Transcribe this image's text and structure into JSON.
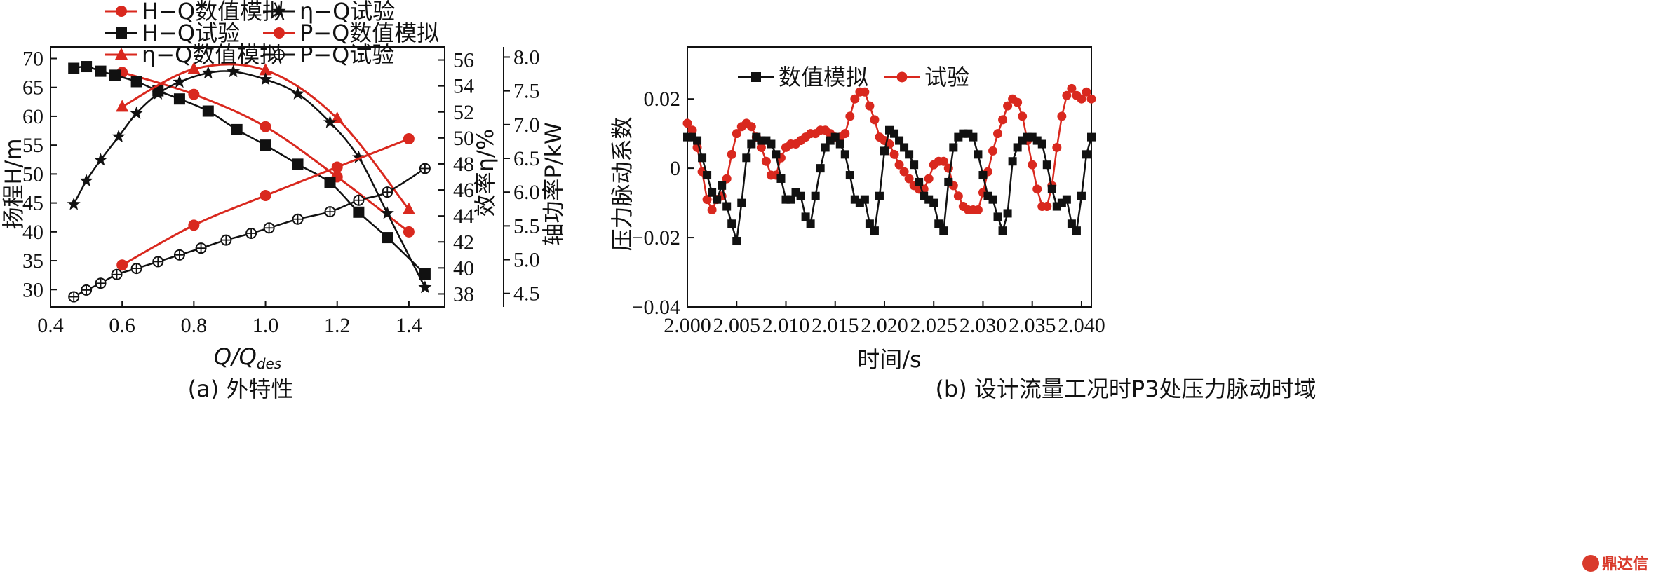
{
  "watermark": {
    "text": "鼎达信",
    "color": "#d93a2b"
  },
  "colors": {
    "red": "#d9281e",
    "black": "#111111"
  },
  "chart_data": [
    {
      "type": "line",
      "caption": "(a) 外特性",
      "xlabel": "Q/Q_des",
      "xlabel_main": "Q/Q",
      "xlabel_sub": "des",
      "xlim": [
        0.4,
        1.5
      ],
      "xticks": [
        "0.4",
        "0.6",
        "0.8",
        "1.0",
        "1.2",
        "1.4"
      ],
      "y_axes": [
        {
          "id": "H",
          "label": "扬程H/m",
          "lim": [
            27,
            72
          ],
          "ticks": [
            "30",
            "35",
            "40",
            "45",
            "50",
            "55",
            "60",
            "65",
            "70"
          ]
        },
        {
          "id": "eta",
          "label": "效率η/%",
          "lim": [
            37,
            57
          ],
          "ticks": [
            "38",
            "40",
            "42",
            "44",
            "46",
            "48",
            "50",
            "52",
            "54",
            "56"
          ]
        },
        {
          "id": "P",
          "label": "轴功率P/kW",
          "lim": [
            4.3,
            8.15
          ],
          "ticks": [
            "4.5",
            "5.0",
            "5.5",
            "6.0",
            "6.5",
            "7.0",
            "7.5",
            "8.0"
          ]
        }
      ],
      "legend": {
        "placement": "top",
        "entries": [
          "H−Q数值模拟",
          "η−Q试验",
          "H−Q试验",
          "P−Q数值模拟",
          "η−Q数值模拟",
          "P−Q试验"
        ]
      },
      "series": [
        {
          "name": "H−Q数值模拟",
          "axis": "H",
          "color": "#d9281e",
          "marker": "circle",
          "x": [
            0.6,
            0.8,
            1.0,
            1.2,
            1.4
          ],
          "y": [
            67.6,
            63.8,
            58.2,
            49.5,
            40.0
          ]
        },
        {
          "name": "H−Q试验",
          "axis": "H",
          "color": "#111111",
          "marker": "square",
          "x": [
            0.465,
            0.5,
            0.54,
            0.58,
            0.64,
            0.7,
            0.76,
            0.84,
            0.92,
            1.0,
            1.09,
            1.18,
            1.26,
            1.34,
            1.445
          ],
          "y": [
            68.3,
            68.6,
            67.8,
            67.1,
            66.0,
            64.4,
            63.0,
            60.9,
            57.7,
            55.0,
            51.7,
            48.5,
            43.4,
            39.0,
            32.7
          ]
        },
        {
          "name": "η−Q数值模拟",
          "axis": "eta",
          "color": "#d9281e",
          "marker": "triangle",
          "x": [
            0.6,
            0.8,
            1.0,
            1.2,
            1.4
          ],
          "y": [
            52.4,
            55.3,
            55.2,
            51.5,
            44.5
          ]
        },
        {
          "name": "η−Q试验",
          "axis": "eta",
          "color": "#111111",
          "marker": "star",
          "x": [
            0.465,
            0.5,
            0.54,
            0.59,
            0.64,
            0.7,
            0.76,
            0.84,
            0.91,
            1.0,
            1.09,
            1.18,
            1.26,
            1.34,
            1.445
          ],
          "y": [
            44.9,
            46.7,
            48.3,
            50.1,
            51.9,
            53.4,
            54.3,
            55.0,
            55.1,
            54.5,
            53.4,
            51.2,
            48.5,
            44.2,
            38.5
          ]
        },
        {
          "name": "P−Q数值模拟",
          "axis": "P",
          "color": "#d9281e",
          "marker": "circle",
          "x": [
            0.6,
            0.8,
            1.0,
            1.2,
            1.4
          ],
          "y": [
            4.92,
            5.51,
            5.95,
            6.37,
            6.79
          ]
        },
        {
          "name": "P−Q试验",
          "axis": "P",
          "color": "#111111",
          "marker": "circled-plus",
          "x": [
            0.465,
            0.5,
            0.54,
            0.585,
            0.64,
            0.7,
            0.76,
            0.82,
            0.89,
            0.96,
            1.01,
            1.09,
            1.18,
            1.26,
            1.34,
            1.445
          ],
          "y": [
            4.45,
            4.55,
            4.65,
            4.78,
            4.87,
            4.97,
            5.07,
            5.17,
            5.29,
            5.39,
            5.47,
            5.6,
            5.71,
            5.88,
            6.0,
            6.35
          ]
        }
      ]
    },
    {
      "type": "line",
      "caption": "(b) 设计流量工况时P3处压力脉动时域",
      "xlabel": "时间/s",
      "ylabel": "压力脉动系数",
      "xlim": [
        2.0,
        2.041
      ],
      "ylim": [
        -0.04,
        0.035
      ],
      "xticks": [
        "2.000",
        "2.005",
        "2.010",
        "2.015",
        "2.020",
        "2.025",
        "2.030",
        "2.035",
        "2.040"
      ],
      "yticks": [
        "−0.04",
        "−0.02",
        "0",
        "0.02"
      ],
      "legend": {
        "placement": "top-left",
        "entries": [
          "数值模拟",
          "试验"
        ]
      },
      "series": [
        {
          "name": "数值模拟",
          "color": "#111111",
          "marker": "square",
          "x": [
            2.0,
            2.0005,
            2.001,
            2.0015,
            2.002,
            2.0025,
            2.003,
            2.0035,
            2.004,
            2.0045,
            2.005,
            2.0055,
            2.006,
            2.0065,
            2.007,
            2.0075,
            2.008,
            2.0085,
            2.009,
            2.0095,
            2.01,
            2.0105,
            2.011,
            2.0115,
            2.012,
            2.0125,
            2.013,
            2.0135,
            2.014,
            2.0145,
            2.015,
            2.0155,
            2.016,
            2.0165,
            2.017,
            2.0175,
            2.018,
            2.0185,
            2.019,
            2.0195,
            2.02,
            2.0205,
            2.021,
            2.0215,
            2.022,
            2.0225,
            2.023,
            2.0235,
            2.024,
            2.0245,
            2.025,
            2.0255,
            2.026,
            2.0265,
            2.027,
            2.0275,
            2.028,
            2.0285,
            2.029,
            2.0295,
            2.03,
            2.0305,
            2.031,
            2.0315,
            2.032,
            2.0325,
            2.033,
            2.0335,
            2.034,
            2.0345,
            2.035,
            2.0355,
            2.036,
            2.0365,
            2.037,
            2.0375,
            2.038,
            2.0385,
            2.039,
            2.0395,
            2.04,
            2.0405,
            2.041
          ],
          "y": [
            0.009,
            0.009,
            0.008,
            0.003,
            -0.002,
            -0.007,
            -0.009,
            -0.005,
            -0.011,
            -0.016,
            -0.021,
            -0.01,
            0.003,
            0.007,
            0.009,
            0.008,
            0.008,
            0.007,
            0.004,
            -0.003,
            -0.009,
            -0.009,
            -0.007,
            -0.008,
            -0.014,
            -0.016,
            -0.008,
            0.0,
            0.006,
            0.008,
            0.009,
            0.007,
            0.004,
            -0.002,
            -0.009,
            -0.01,
            -0.009,
            -0.016,
            -0.018,
            -0.008,
            0.005,
            0.011,
            0.01,
            0.008,
            0.006,
            0.004,
            0.001,
            -0.004,
            -0.008,
            -0.009,
            -0.01,
            -0.016,
            -0.018,
            -0.004,
            0.006,
            0.009,
            0.01,
            0.01,
            0.009,
            0.004,
            -0.002,
            -0.008,
            -0.009,
            -0.014,
            -0.018,
            -0.013,
            0.002,
            0.006,
            0.008,
            0.009,
            0.009,
            0.008,
            0.007,
            0.001,
            -0.006,
            -0.011,
            -0.01,
            -0.009,
            -0.016,
            -0.018,
            -0.008,
            0.004,
            0.009
          ]
        },
        {
          "name": "试验",
          "color": "#d9281e",
          "marker": "circle",
          "x": [
            2.0,
            2.0005,
            2.001,
            2.0015,
            2.002,
            2.0025,
            2.003,
            2.0035,
            2.004,
            2.0045,
            2.005,
            2.0055,
            2.006,
            2.0065,
            2.007,
            2.0075,
            2.008,
            2.0085,
            2.009,
            2.0095,
            2.01,
            2.0105,
            2.011,
            2.0115,
            2.012,
            2.0125,
            2.013,
            2.0135,
            2.014,
            2.0145,
            2.015,
            2.0155,
            2.016,
            2.0165,
            2.017,
            2.0175,
            2.018,
            2.0185,
            2.019,
            2.0195,
            2.02,
            2.0205,
            2.021,
            2.0215,
            2.022,
            2.0225,
            2.023,
            2.0235,
            2.024,
            2.0245,
            2.025,
            2.0255,
            2.026,
            2.0265,
            2.027,
            2.0275,
            2.028,
            2.0285,
            2.029,
            2.0295,
            2.03,
            2.0305,
            2.031,
            2.0315,
            2.032,
            2.0325,
            2.033,
            2.0335,
            2.034,
            2.0345,
            2.035,
            2.0355,
            2.036,
            2.0365,
            2.037,
            2.0375,
            2.038,
            2.0385,
            2.039,
            2.0395,
            2.04,
            2.0405,
            2.041
          ],
          "y": [
            0.013,
            0.011,
            0.006,
            -0.001,
            -0.009,
            -0.012,
            -0.009,
            -0.008,
            -0.003,
            0.004,
            0.01,
            0.012,
            0.013,
            0.012,
            0.009,
            0.006,
            0.002,
            -0.002,
            -0.002,
            0.003,
            0.006,
            0.007,
            0.007,
            0.008,
            0.009,
            0.01,
            0.01,
            0.011,
            0.011,
            0.01,
            0.009,
            0.009,
            0.01,
            0.015,
            0.02,
            0.022,
            0.022,
            0.018,
            0.014,
            0.009,
            0.008,
            0.007,
            0.004,
            0.001,
            -0.001,
            -0.003,
            -0.005,
            -0.006,
            -0.006,
            -0.003,
            0.001,
            0.002,
            0.002,
            0.0,
            -0.005,
            -0.008,
            -0.011,
            -0.012,
            -0.012,
            -0.012,
            -0.007,
            -0.001,
            0.005,
            0.01,
            0.014,
            0.018,
            0.02,
            0.019,
            0.015,
            0.008,
            0.001,
            -0.006,
            -0.011,
            -0.011,
            -0.005,
            0.006,
            0.015,
            0.021,
            0.023,
            0.021,
            0.02,
            0.022,
            0.02
          ]
        }
      ]
    }
  ]
}
